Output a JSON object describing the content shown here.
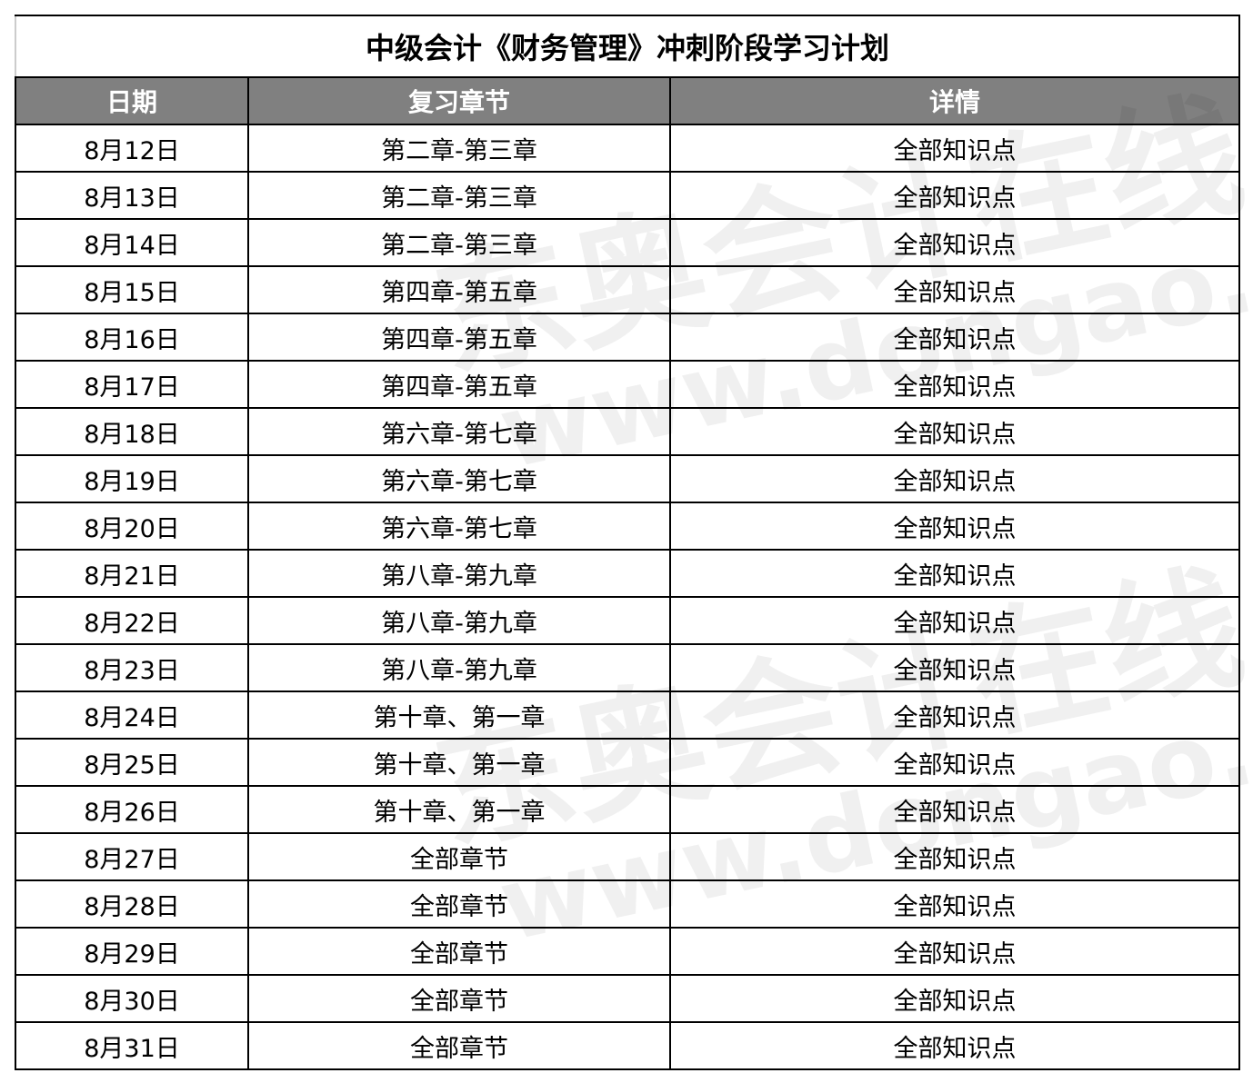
{
  "title": "中级会计《财务管理》冲刺阶段学习计划",
  "headers": [
    "日期",
    "复习章节",
    "详情"
  ],
  "rows": [
    [
      "8月12日",
      "第二章-第三章",
      "全部知识点"
    ],
    [
      "8月13日",
      "第二章-第三章",
      "全部知识点"
    ],
    [
      "8月14日",
      "第二章-第三章",
      "全部知识点"
    ],
    [
      "8月15日",
      "第四章-第五章",
      "全部知识点"
    ],
    [
      "8月16日",
      "第四章-第五章",
      "全部知识点"
    ],
    [
      "8月17日",
      "第四章-第五章",
      "全部知识点"
    ],
    [
      "8月18日",
      "第六章-第七章",
      "全部知识点"
    ],
    [
      "8月19日",
      "第六章-第七章",
      "全部知识点"
    ],
    [
      "8月20日",
      "第六章-第七章",
      "全部知识点"
    ],
    [
      "8月21日",
      "第八章-第九章",
      "全部知识点"
    ],
    [
      "8月22日",
      "第八章-第九章",
      "全部知识点"
    ],
    [
      "8月23日",
      "第八章-第九章",
      "全部知识点"
    ],
    [
      "8月24日",
      "第十章、第一章",
      "全部知识点"
    ],
    [
      "8月25日",
      "第十章、第一章",
      "全部知识点"
    ],
    [
      "8月26日",
      "第十章、第一章",
      "全部知识点"
    ],
    [
      "8月27日",
      "全部章节",
      "全部知识点"
    ],
    [
      "8月28日",
      "全部章节",
      "全部知识点"
    ],
    [
      "8月29日",
      "全部章节",
      "全部知识点"
    ],
    [
      "8月30日",
      "全部章节",
      "全部知识点"
    ],
    [
      "8月31日",
      "全部章节",
      "全部知识点"
    ]
  ],
  "watermark": {
    "brand": "东奥会计在线",
    "url": "www.dongao.com"
  },
  "colors": {
    "header_bg": "#808080",
    "header_text": "#ffffff"
  }
}
